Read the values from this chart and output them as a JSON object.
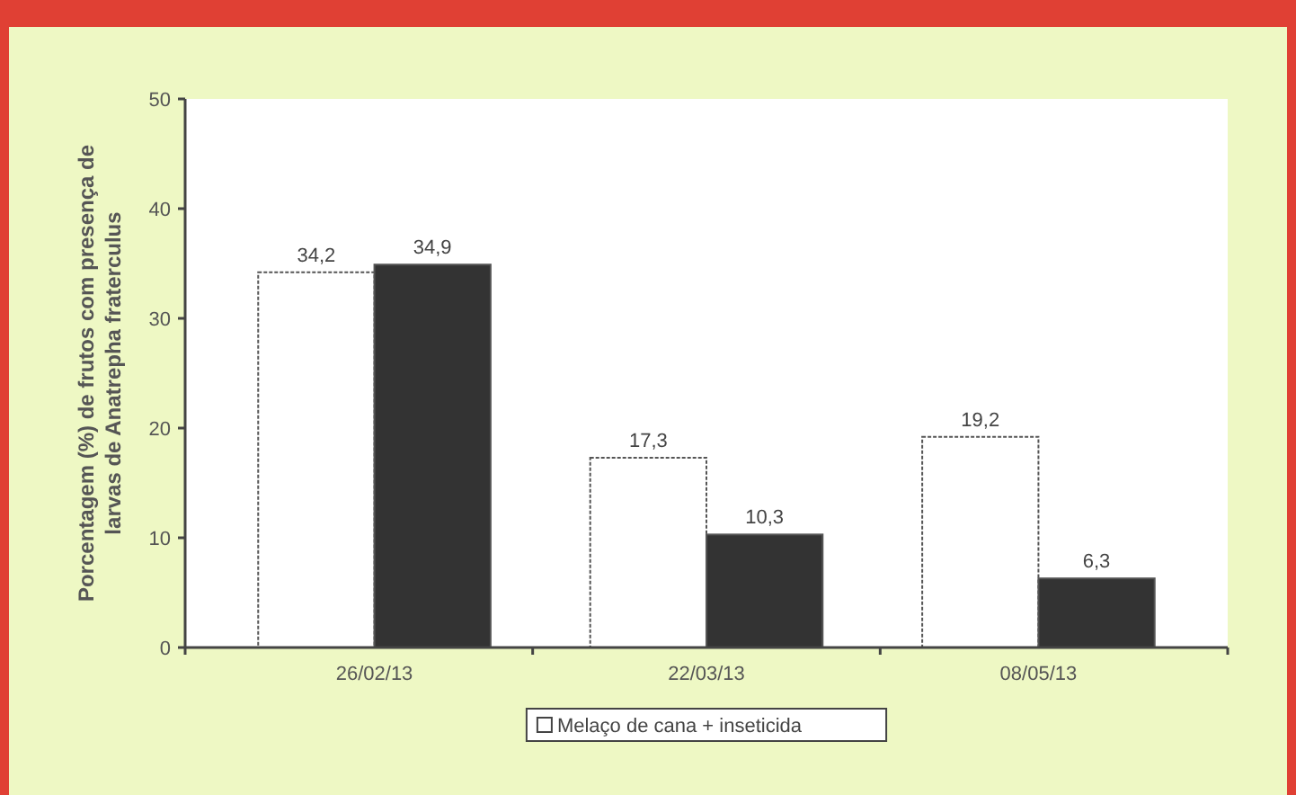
{
  "chart_data": {
    "type": "bar",
    "ylabel": "Porcentagem (%) de frutos com presença de larvas de Anatrepha fraterculus",
    "categories": [
      "26/02/13",
      "22/03/13",
      "08/05/13"
    ],
    "series": [
      {
        "name": "Melaço de cana + inseticida",
        "color": "#ffffff",
        "values": [
          34.2,
          17.3,
          19.2
        ],
        "value_labels": [
          "34,2",
          "17,3",
          "19,2"
        ]
      },
      {
        "color": "#333333",
        "values": [
          34.9,
          10.3,
          6.3
        ],
        "value_labels": [
          "34,9",
          "10,3",
          "6,3"
        ]
      }
    ],
    "ylim": [
      0,
      50
    ],
    "yticks": [
      0,
      10,
      20,
      30,
      40,
      50
    ],
    "legend": "bottom",
    "grid": false
  }
}
